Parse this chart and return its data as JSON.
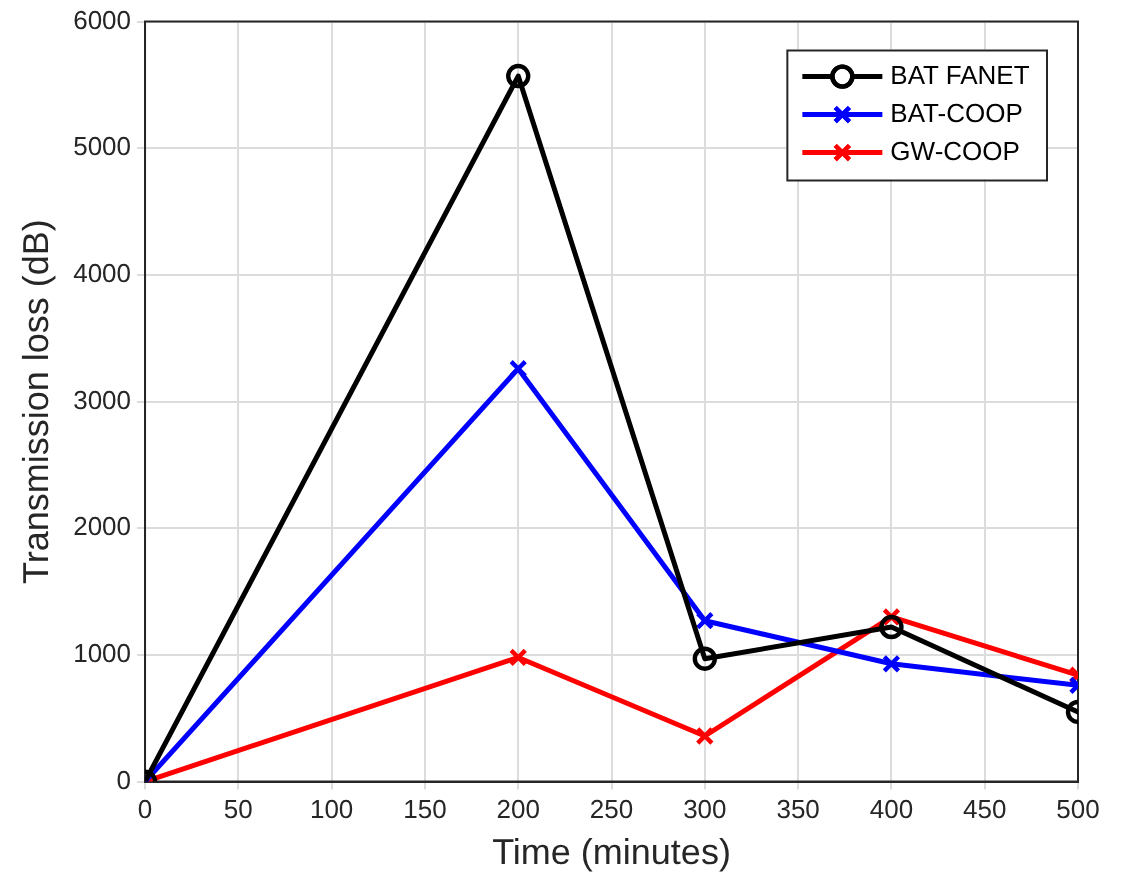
{
  "chart_data": {
    "type": "line",
    "xlabel": "Time (minutes)",
    "ylabel": "Transmission loss (dB)",
    "x": [
      0,
      200,
      300,
      400,
      500
    ],
    "series": [
      {
        "name": "BAT FANET",
        "color": "#000000",
        "marker": "circle",
        "values": [
          0,
          5570,
          970,
          1220,
          550
        ]
      },
      {
        "name": "BAT-COOP",
        "color": "#0000ff",
        "marker": "cross",
        "values": [
          0,
          3260,
          1270,
          930,
          760
        ]
      },
      {
        "name": "GW-COOP",
        "color": "#ff0000",
        "marker": "cross",
        "values": [
          0,
          980,
          360,
          1300,
          840
        ]
      }
    ],
    "xlim": [
      0,
      500
    ],
    "xticks": [
      0,
      50,
      100,
      150,
      200,
      250,
      300,
      350,
      400,
      450,
      500
    ],
    "ylim": [
      0,
      6000
    ],
    "yticks": [
      0,
      1000,
      2000,
      3000,
      4000,
      5000,
      6000
    ],
    "grid": true,
    "legend": "top right"
  }
}
